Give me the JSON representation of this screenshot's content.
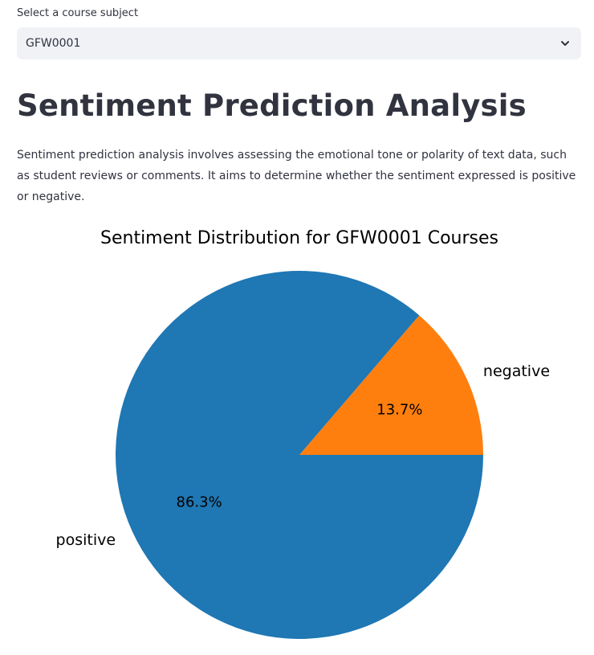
{
  "selector": {
    "label": "Select a course subject",
    "value": "GFW0001",
    "icon": "chevron-down-icon"
  },
  "main": {
    "title": "Sentiment Prediction Analysis",
    "description": "Sentiment prediction analysis involves assessing the emotional tone or polarity of text data, such as student reviews or comments. It aims to determine whether the sentiment expressed is positive or negative."
  },
  "chart_data": {
    "type": "pie",
    "title": "Sentiment Distribution for GFW0001 Courses",
    "slices": [
      {
        "label": "negative",
        "value": 13.7,
        "pct_label": "13.7%",
        "color": "#ff7f0e"
      },
      {
        "label": "positive",
        "value": 86.3,
        "pct_label": "86.3%",
        "color": "#1f77b4"
      }
    ]
  }
}
